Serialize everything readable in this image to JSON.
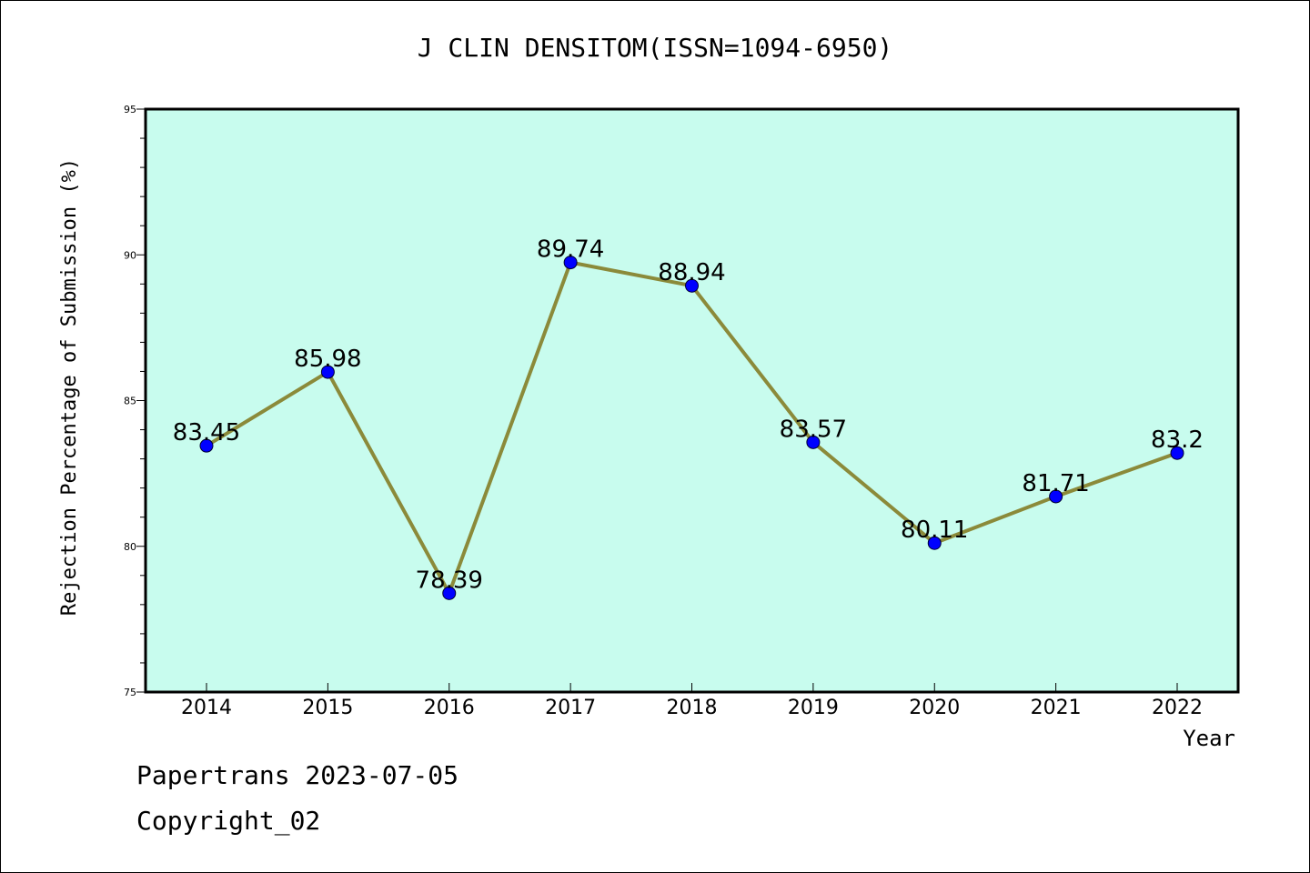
{
  "chart_data": {
    "type": "line",
    "title": "J CLIN DENSITOM(ISSN=1094-6950)",
    "xlabel": "Year",
    "ylabel": "Rejection Percentage of Submission (%)",
    "categories": [
      "2014",
      "2015",
      "2016",
      "2017",
      "2018",
      "2019",
      "2020",
      "2021",
      "2022"
    ],
    "series": [
      {
        "values": [
          83.45,
          85.98,
          78.39,
          89.74,
          88.94,
          83.57,
          80.11,
          81.71,
          83.2
        ],
        "labels": [
          "83.45",
          "85.98",
          "78.39",
          "89.74",
          "88.94",
          "83.57",
          "80.11",
          "81.71",
          "83.2"
        ]
      }
    ],
    "ylim": [
      75,
      95
    ],
    "yticks": [
      "75",
      "80",
      "85",
      "90",
      "95"
    ],
    "grid": false,
    "colors": {
      "plot_background": "#c8fcee",
      "line": "#8b8a3a",
      "marker": "#0000ff"
    }
  },
  "footer": {
    "line1": "Papertrans 2023-07-05",
    "line2": "Copyright_02"
  }
}
